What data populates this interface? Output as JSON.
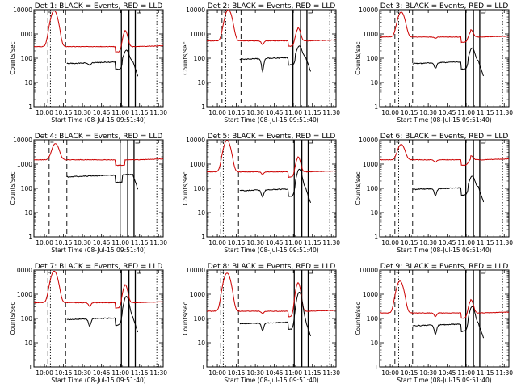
{
  "figure": {
    "panel_titles": [
      "Det 1: BLACK = Events, RED = LLD",
      "Det 2: BLACK = Events, RED = LLD",
      "Det 3: BLACK = Events, RED = LLD",
      "Det 4: BLACK = Events, RED = LLD",
      "Det 5: BLACK = Events, RED = LLD",
      "Det 6: BLACK = Events, RED = LLD",
      "Det 7: BLACK = Events, RED = LLD",
      "Det 8: BLACK = Events, RED = LLD",
      "Det 9: BLACK = Events, RED = LLD"
    ],
    "xlabel": "Start Time (08-Jul-15 09:51:40)",
    "ylabel": "Counts/sec",
    "x_tick_labels": [
      "10:00",
      "10:15",
      "10:30",
      "10:45",
      "11:00",
      "11:15",
      "11:30"
    ],
    "y_tick_labels": [
      "1",
      "10",
      "100",
      "1000",
      "10000"
    ]
  },
  "chart_data": {
    "type": "line",
    "y_scale": "log",
    "ylim": [
      1,
      10000
    ],
    "x_unit": "minutes after 09:51:40",
    "xlim": [
      0,
      102
    ],
    "x_ticks": [
      8.33,
      23.33,
      38.33,
      53.33,
      68.33,
      83.33,
      98.33
    ],
    "colors": {
      "events": "#000000",
      "lld": "#cc0000"
    },
    "panels": [
      {
        "lld_base": 300,
        "peak": 9000,
        "peak_x": 16,
        "events_base": 60,
        "dip_lld": 1.0,
        "dip_ev": 0.8,
        "second_peak_lld": 1400,
        "second_peak_ev": 200,
        "vlines_dashed": [
          11,
          25
        ],
        "vlines_dotted": [
          13
        ],
        "vlines_solid": [
          69,
          75,
          80
        ],
        "vlines_right": [
          97
        ]
      },
      {
        "lld_base": 520,
        "peak": 10000,
        "peak_x": 17,
        "events_base": 90,
        "dip_lld": 0.7,
        "dip_ev": 0.3,
        "second_peak_lld": 1800,
        "second_peak_ev": 300,
        "vlines_dashed": [
          12,
          27
        ],
        "vlines_dotted": [
          15
        ],
        "vlines_solid": [
          68,
          74,
          79
        ],
        "vlines_right": [
          97
        ]
      },
      {
        "lld_base": 750,
        "peak": 8000,
        "peak_x": 17,
        "events_base": 60,
        "dip_lld": 0.9,
        "dip_ev": 0.6,
        "second_peak_lld": 1500,
        "second_peak_ev": 250,
        "vlines_dashed": [
          12,
          26
        ],
        "vlines_dotted": [
          15
        ],
        "vlines_solid": [
          68,
          74,
          79
        ],
        "vlines_right": [
          97
        ]
      },
      {
        "lld_base": 1500,
        "peak": 7000,
        "peak_x": 17,
        "events_base": 300,
        "dip_lld": 1.0,
        "dip_ev": 1.0,
        "second_peak_lld": 1500,
        "second_peak_ev": 300,
        "vlines_dashed": [
          12,
          26
        ],
        "vlines_dotted": [
          15
        ],
        "vlines_solid": [
          68,
          74,
          79
        ],
        "vlines_right": [
          97
        ]
      },
      {
        "lld_base": 480,
        "peak": 9500,
        "peak_x": 16,
        "events_base": 80,
        "dip_lld": 0.8,
        "dip_ev": 0.5,
        "second_peak_lld": 2000,
        "second_peak_ev": 600,
        "vlines_dashed": [
          11,
          25
        ],
        "vlines_dotted": [
          13
        ],
        "vlines_solid": [
          69,
          75,
          80
        ],
        "vlines_right": [
          97
        ]
      },
      {
        "lld_base": 1500,
        "peak": 6500,
        "peak_x": 17,
        "events_base": 90,
        "dip_lld": 0.8,
        "dip_ev": 0.5,
        "second_peak_lld": 2200,
        "second_peak_ev": 300,
        "vlines_dashed": [
          12,
          26
        ],
        "vlines_dotted": [
          15
        ],
        "vlines_solid": [
          68,
          74,
          79
        ],
        "vlines_right": [
          97
        ]
      },
      {
        "lld_base": 450,
        "peak": 9000,
        "peak_x": 16,
        "events_base": 90,
        "dip_lld": 0.7,
        "dip_ev": 0.5,
        "second_peak_lld": 2500,
        "second_peak_ev": 800,
        "vlines_dashed": [
          11,
          25
        ],
        "vlines_dotted": [
          13
        ],
        "vlines_solid": [
          69,
          75,
          80
        ],
        "vlines_right": [
          97
        ]
      },
      {
        "lld_base": 200,
        "peak": 7500,
        "peak_x": 16,
        "events_base": 60,
        "dip_lld": 0.8,
        "dip_ev": 0.5,
        "second_peak_lld": 3000,
        "second_peak_ev": 1200,
        "vlines_dashed": [
          11,
          25
        ],
        "vlines_dotted": [
          13
        ],
        "vlines_solid": [
          69,
          75,
          80
        ],
        "vlines_right": [
          97
        ]
      },
      {
        "lld_base": 170,
        "peak": 3500,
        "peak_x": 16,
        "events_base": 50,
        "dip_lld": 0.7,
        "dip_ev": 0.4,
        "second_peak_lld": 600,
        "second_peak_ev": 300,
        "vlines_dashed": [
          12,
          26
        ],
        "vlines_dotted": [
          15
        ],
        "vlines_solid": [
          68,
          74,
          79
        ],
        "vlines_right": [
          97
        ]
      }
    ]
  }
}
